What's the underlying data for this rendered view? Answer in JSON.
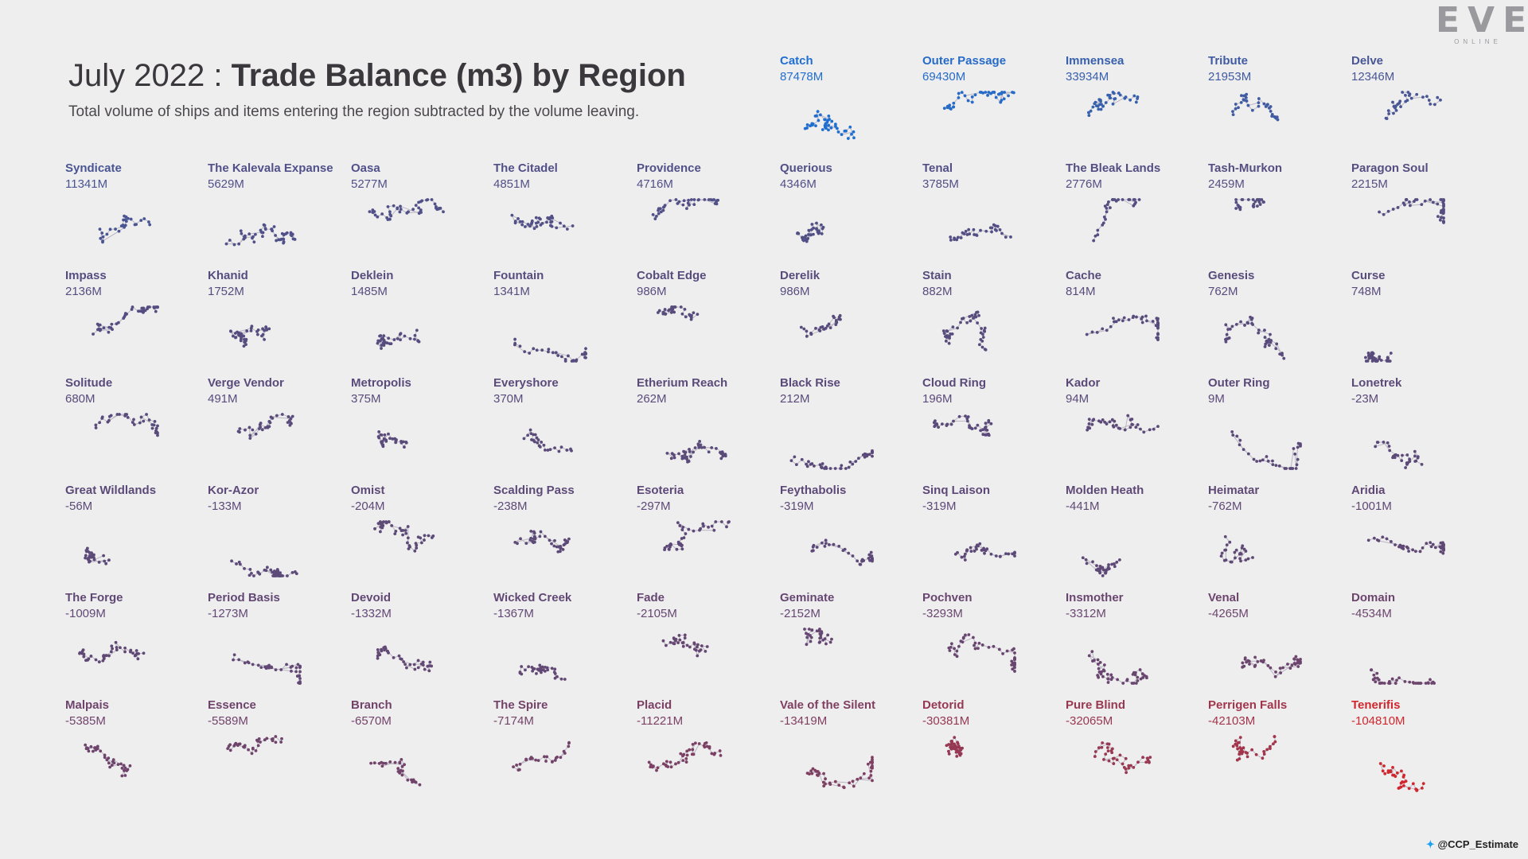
{
  "logo": {
    "main": "EVE",
    "sub": "ONLINE"
  },
  "header": {
    "title_prefix": "July 2022 : ",
    "title_main": "Trade Balance (m3) by Region",
    "subtitle": "Total volume of ships and items entering the region subtracted by the volume leaving."
  },
  "credit": {
    "icon": "twitter-icon",
    "handle": "@CCP_Estimate"
  },
  "colors": {
    "positive_top": "#1f6fd1",
    "neutral": "#5b4a78",
    "negative": "#d0272e",
    "background": "#efeeef"
  },
  "chart_data": {
    "type": "small-multiples",
    "title": "July 2022 : Trade Balance (m3) by Region",
    "unit": "M m3",
    "regions": [
      {
        "name": "Catch",
        "value": 87478,
        "label": "87478M"
      },
      {
        "name": "Outer Passage",
        "value": 69430,
        "label": "69430M"
      },
      {
        "name": "Immensea",
        "value": 33934,
        "label": "33934M"
      },
      {
        "name": "Tribute",
        "value": 21953,
        "label": "21953M"
      },
      {
        "name": "Delve",
        "value": 12346,
        "label": "12346M"
      },
      {
        "name": "Syndicate",
        "value": 11341,
        "label": "11341M"
      },
      {
        "name": "The Kalevala Expanse",
        "value": 5629,
        "label": "5629M"
      },
      {
        "name": "Oasa",
        "value": 5277,
        "label": "5277M"
      },
      {
        "name": "The Citadel",
        "value": 4851,
        "label": "4851M"
      },
      {
        "name": "Providence",
        "value": 4716,
        "label": "4716M"
      },
      {
        "name": "Querious",
        "value": 4346,
        "label": "4346M"
      },
      {
        "name": "Tenal",
        "value": 3785,
        "label": "3785M"
      },
      {
        "name": "The Bleak Lands",
        "value": 2776,
        "label": "2776M"
      },
      {
        "name": "Tash-Murkon",
        "value": 2459,
        "label": "2459M"
      },
      {
        "name": "Paragon Soul",
        "value": 2215,
        "label": "2215M"
      },
      {
        "name": "Impass",
        "value": 2136,
        "label": "2136M"
      },
      {
        "name": "Khanid",
        "value": 1752,
        "label": "1752M"
      },
      {
        "name": "Deklein",
        "value": 1485,
        "label": "1485M"
      },
      {
        "name": "Fountain",
        "value": 1341,
        "label": "1341M"
      },
      {
        "name": "Cobalt Edge",
        "value": 986,
        "label": "986M"
      },
      {
        "name": "Derelik",
        "value": 986,
        "label": "986M"
      },
      {
        "name": "Stain",
        "value": 882,
        "label": "882M"
      },
      {
        "name": "Cache",
        "value": 814,
        "label": "814M"
      },
      {
        "name": "Genesis",
        "value": 762,
        "label": "762M"
      },
      {
        "name": "Curse",
        "value": 748,
        "label": "748M"
      },
      {
        "name": "Solitude",
        "value": 680,
        "label": "680M"
      },
      {
        "name": "Verge Vendor",
        "value": 491,
        "label": "491M"
      },
      {
        "name": "Metropolis",
        "value": 375,
        "label": "375M"
      },
      {
        "name": "Everyshore",
        "value": 370,
        "label": "370M"
      },
      {
        "name": "Etherium Reach",
        "value": 262,
        "label": "262M"
      },
      {
        "name": "Black Rise",
        "value": 212,
        "label": "212M"
      },
      {
        "name": "Cloud Ring",
        "value": 196,
        "label": "196M"
      },
      {
        "name": "Kador",
        "value": 94,
        "label": "94M"
      },
      {
        "name": "Outer Ring",
        "value": 9,
        "label": "9M"
      },
      {
        "name": "Lonetrek",
        "value": -23,
        "label": "-23M"
      },
      {
        "name": "Great Wildlands",
        "value": -56,
        "label": "-56M"
      },
      {
        "name": "Kor-Azor",
        "value": -133,
        "label": "-133M"
      },
      {
        "name": "Omist",
        "value": -204,
        "label": "-204M"
      },
      {
        "name": "Scalding Pass",
        "value": -238,
        "label": "-238M"
      },
      {
        "name": "Esoteria",
        "value": -297,
        "label": "-297M"
      },
      {
        "name": "Feythabolis",
        "value": -319,
        "label": "-319M"
      },
      {
        "name": "Sinq Laison",
        "value": -319,
        "label": "-319M"
      },
      {
        "name": "Molden Heath",
        "value": -441,
        "label": "-441M"
      },
      {
        "name": "Heimatar",
        "value": -762,
        "label": "-762M"
      },
      {
        "name": "Aridia",
        "value": -1001,
        "label": "-1001M"
      },
      {
        "name": "The Forge",
        "value": -1009,
        "label": "-1009M"
      },
      {
        "name": "Period Basis",
        "value": -1273,
        "label": "-1273M"
      },
      {
        "name": "Devoid",
        "value": -1332,
        "label": "-1332M"
      },
      {
        "name": "Wicked Creek",
        "value": -1367,
        "label": "-1367M"
      },
      {
        "name": "Fade",
        "value": -2105,
        "label": "-2105M"
      },
      {
        "name": "Geminate",
        "value": -2152,
        "label": "-2152M"
      },
      {
        "name": "Pochven",
        "value": -3293,
        "label": "-3293M"
      },
      {
        "name": "Insmother",
        "value": -3312,
        "label": "-3312M"
      },
      {
        "name": "Venal",
        "value": -4265,
        "label": "-4265M"
      },
      {
        "name": "Domain",
        "value": -4534,
        "label": "-4534M"
      },
      {
        "name": "Malpais",
        "value": -5385,
        "label": "-5385M"
      },
      {
        "name": "Essence",
        "value": -5589,
        "label": "-5589M"
      },
      {
        "name": "Branch",
        "value": -6570,
        "label": "-6570M"
      },
      {
        "name": "The Spire",
        "value": -7174,
        "label": "-7174M"
      },
      {
        "name": "Placid",
        "value": -11221,
        "label": "-11221M"
      },
      {
        "name": "Vale of the Silent",
        "value": -13419,
        "label": "-13419M"
      },
      {
        "name": "Detorid",
        "value": -30381,
        "label": "-30381M"
      },
      {
        "name": "Pure Blind",
        "value": -32065,
        "label": "-32065M"
      },
      {
        "name": "Perrigen Falls",
        "value": -42103,
        "label": "-42103M"
      },
      {
        "name": "Tenerifis",
        "value": -104810,
        "label": "-104810M"
      }
    ]
  }
}
